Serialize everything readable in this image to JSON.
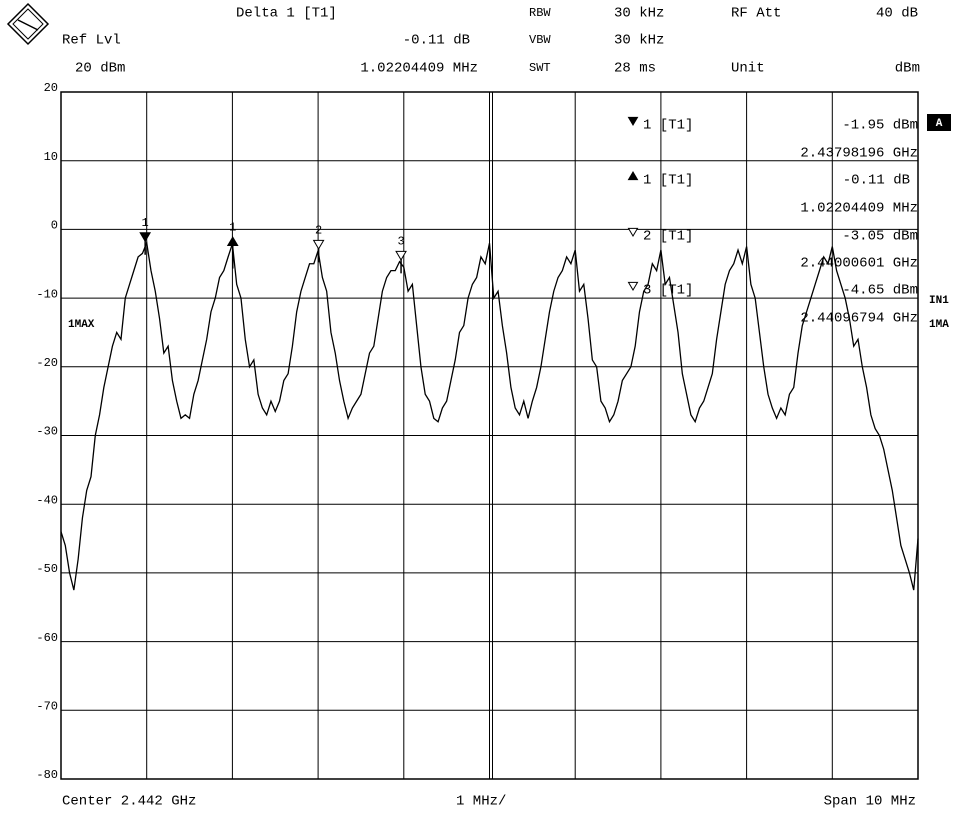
{
  "header": {
    "delta_title": "Delta 1 [T1]",
    "rbw_label": "RBW",
    "rbw_value": "30 kHz",
    "rf_att_label": "RF Att",
    "rf_att_value": "40 dB",
    "ref_lvl_label": "Ref Lvl",
    "delta_level": "-0.11 dB",
    "vbw_label": "VBW",
    "vbw_value": "30 kHz",
    "ref_lvl_value": "20 dBm",
    "delta_freq": "1.02204409 MHz",
    "swt_label": "SWT",
    "swt_value": "28 ms",
    "unit_label": "Unit",
    "unit_value": "dBm"
  },
  "footer": {
    "center": "Center 2.442 GHz",
    "div": "1 MHz/",
    "span": "Span 10 MHz"
  },
  "side": {
    "screen": "A",
    "input": "IN1",
    "trace_mode": "1MA",
    "trace_label": "1MAX"
  },
  "marker_info": [
    {
      "name": "1 [T1]",
      "level": "-1.95 dBm",
      "freq": "2.43798196 GHz"
    },
    {
      "name": "1 [T1]",
      "level": "-0.11 dB",
      "freq": "1.02204409 MHz"
    },
    {
      "name": "2 [T1]",
      "level": "-3.05 dBm",
      "freq": "2.44000601 GHz"
    },
    {
      "name": "3 [T1]",
      "level": "-4.65 dBm",
      "freq": "2.44096794 GHz"
    }
  ],
  "chart_data": {
    "type": "line",
    "xlim": [
      2.437,
      2.447
    ],
    "ylim": [
      -80,
      20
    ],
    "yticks": [
      20,
      10,
      0,
      -10,
      -20,
      -30,
      -40,
      -50,
      -60,
      -70,
      -80
    ],
    "grid": true,
    "series": [
      {
        "color": "#000000",
        "values": [
          -44,
          -46,
          -50,
          -52.5,
          -48,
          -42,
          -38,
          -36,
          -30,
          -27,
          -23,
          -20,
          -17,
          -15,
          -16,
          -10,
          -8,
          -6,
          -4,
          -3.5,
          -1.95,
          -6,
          -9,
          -13,
          -18,
          -17,
          -22,
          -25,
          -27.5,
          -27,
          -27.5,
          -24,
          -22,
          -19,
          -16,
          -12,
          -10,
          -7,
          -6,
          -4,
          -2.1,
          -8,
          -10,
          -16,
          -20,
          -19,
          -24,
          -26,
          -27,
          -25,
          -26.5,
          -25,
          -22,
          -21,
          -17,
          -12,
          -9,
          -7,
          -5,
          -5,
          -3.1,
          -7,
          -9,
          -15,
          -18,
          -22,
          -25,
          -27.5,
          -26,
          -25,
          -24,
          -21,
          -18,
          -17,
          -13,
          -9,
          -7,
          -6,
          -6,
          -4.7,
          -5.5,
          -9,
          -8,
          -14,
          -20,
          -24,
          -25,
          -27.5,
          -28,
          -26,
          -25,
          -22,
          -19,
          -15,
          -14,
          -10,
          -8,
          -7,
          -4,
          -5,
          -2,
          -10,
          -9,
          -14,
          -18,
          -23,
          -26,
          -27,
          -25,
          -27.5,
          -25,
          -23,
          -20,
          -16,
          -12,
          -9,
          -7,
          -6,
          -4,
          -5,
          -3,
          -9,
          -8,
          -13,
          -19,
          -20,
          -25,
          -26,
          -28,
          -27,
          -25,
          -22,
          -21,
          -20,
          -17,
          -12,
          -9,
          -8,
          -5,
          -6,
          -3,
          -8,
          -7,
          -11,
          -15,
          -21,
          -24,
          -27,
          -28,
          -26,
          -25,
          -23,
          -21,
          -16,
          -12,
          -8,
          -6,
          -5,
          -3,
          -5,
          -2.5,
          -8,
          -10,
          -15,
          -20,
          -24,
          -26,
          -27.5,
          -26,
          -27,
          -24,
          -23,
          -18,
          -14,
          -12,
          -10,
          -8,
          -6,
          -4,
          -5,
          -2.5,
          -6,
          -8,
          -10,
          -13,
          -17,
          -16,
          -20,
          -23,
          -27,
          -29,
          -30,
          -32,
          -35,
          -38,
          -42,
          -46,
          -48,
          -50,
          -52.5,
          -45
        ]
      }
    ],
    "markers": [
      {
        "label": "1",
        "x": 2.43798196,
        "value": -1.95,
        "symbol": "down-filled"
      },
      {
        "label": "1",
        "x": 2.439004,
        "value": -2.06,
        "symbol": "up-filled"
      },
      {
        "label": "2",
        "x": 2.44000601,
        "value": -3.05,
        "symbol": "down-open"
      },
      {
        "label": "3",
        "x": 2.44096794,
        "value": -4.65,
        "symbol": "down-open"
      }
    ]
  }
}
